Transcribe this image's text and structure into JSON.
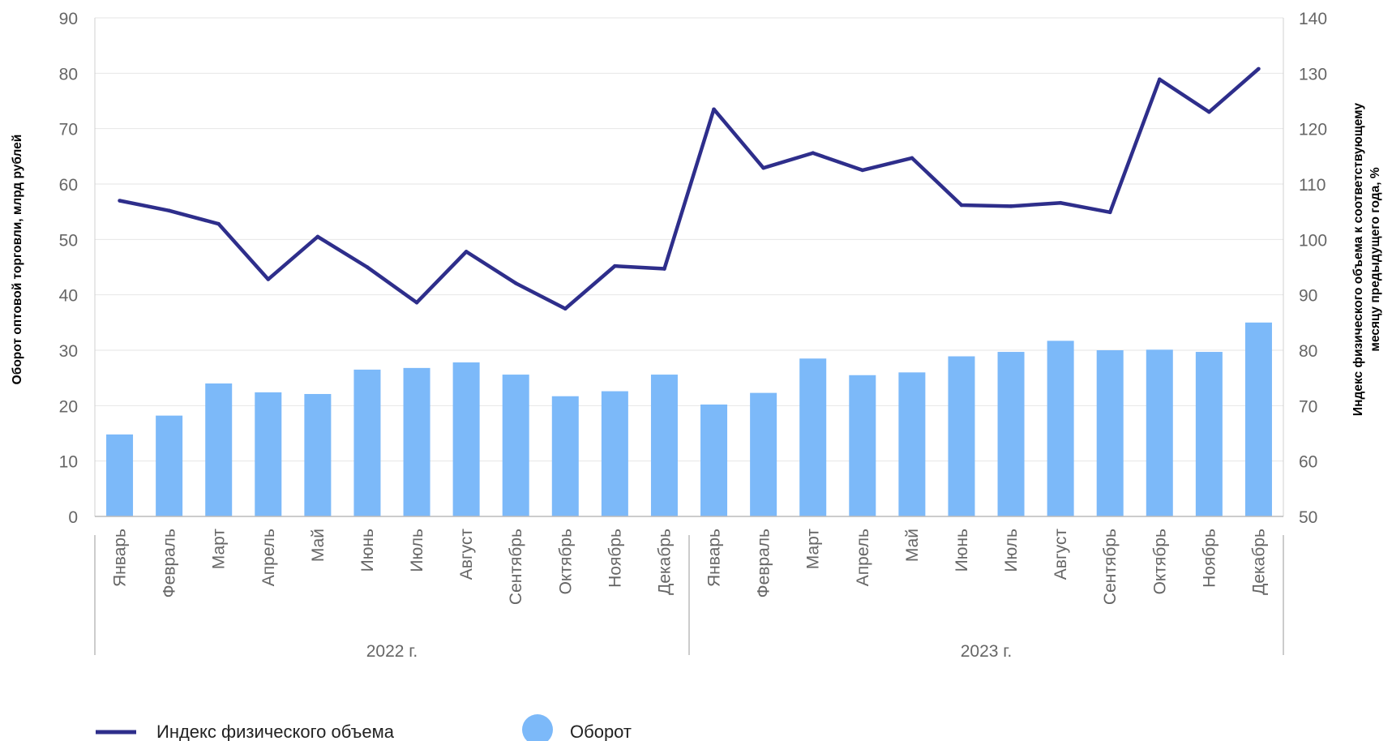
{
  "chart_data": {
    "type": "bar+line",
    "groups": [
      {
        "label": "2022 г.",
        "months": [
          "Январь",
          "Февраль",
          "Март",
          "Апрель",
          "Май",
          "Июнь",
          "Июль",
          "Август",
          "Сентябрь",
          "Октябрь",
          "Ноябрь",
          "Декабрь"
        ]
      },
      {
        "label": "2023 г.",
        "months": [
          "Январь",
          "Февраль",
          "Март",
          "Апрель",
          "Май",
          "Июнь",
          "Июль",
          "Август",
          "Сентябрь",
          "Октябрь",
          "Ноябрь",
          "Декабрь"
        ]
      }
    ],
    "left_axis": {
      "title": "Оборот оптовой  торговли, млрд рублей",
      "min": 0,
      "max": 90,
      "step": 10,
      "ticks": [
        "0",
        "10",
        "20",
        "30",
        "40",
        "50",
        "60",
        "70",
        "80",
        "90"
      ]
    },
    "right_axis": {
      "title_line1": "Индекс физического объема к соответствующему",
      "title_line2": "месяцу предыдущего года, %",
      "min": 50,
      "max": 140,
      "step": 10,
      "ticks": [
        "50",
        "60",
        "70",
        "80",
        "90",
        "100",
        "110",
        "120",
        "130",
        "140"
      ]
    },
    "series": [
      {
        "name": "Оборот",
        "kind": "bar",
        "axis": "left",
        "color": "#7CB9F9",
        "values": [
          14.8,
          18.2,
          24.0,
          22.4,
          22.1,
          26.5,
          26.8,
          27.8,
          25.6,
          21.7,
          22.6,
          25.6,
          20.2,
          22.3,
          28.5,
          25.5,
          26.0,
          28.9,
          29.7,
          31.7,
          30.0,
          30.1,
          29.7,
          35.0
        ]
      },
      {
        "name": "Индекс физического объема",
        "kind": "line",
        "axis": "right",
        "color": "#2E2E8B",
        "values": [
          107.0,
          105.2,
          102.8,
          92.8,
          100.5,
          95.0,
          88.6,
          97.8,
          92.1,
          87.5,
          95.2,
          94.7,
          123.5,
          112.9,
          115.6,
          112.5,
          114.7,
          106.2,
          106.0,
          106.6,
          104.9,
          128.9,
          123.0,
          130.8
        ]
      }
    ],
    "legend": {
      "position": "bottom-left",
      "items": [
        {
          "label": "Индекс физического объема",
          "marker": "line",
          "color": "#2E2E8B"
        },
        {
          "label": "Оборот",
          "marker": "circle",
          "color": "#7CB9F9"
        }
      ]
    },
    "grid": {
      "horizontal": true,
      "color": "#E6E6E6"
    }
  }
}
